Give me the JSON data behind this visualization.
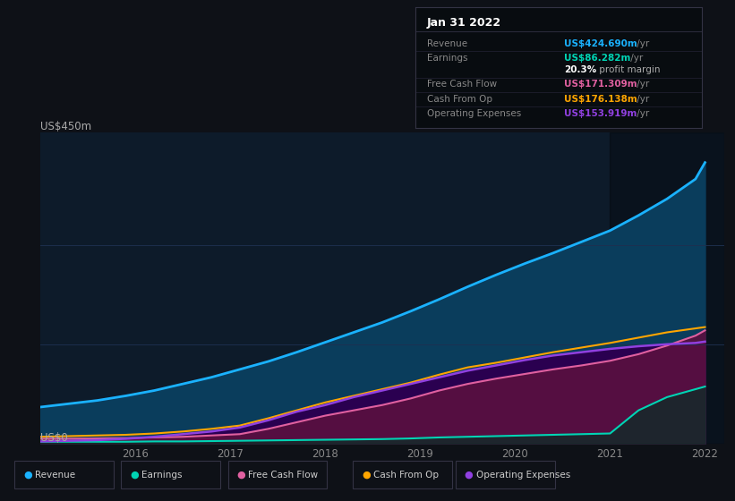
{
  "background_color": "#0e1117",
  "plot_bg_color": "#0d1b2a",
  "ylabel": "US$450m",
  "y0label": "US$0",
  "years": [
    2015.0,
    2015.3,
    2015.6,
    2015.9,
    2016.2,
    2016.5,
    2016.8,
    2017.1,
    2017.4,
    2017.7,
    2018.0,
    2018.3,
    2018.6,
    2018.9,
    2019.2,
    2019.5,
    2019.8,
    2020.1,
    2020.4,
    2020.7,
    2021.0,
    2021.3,
    2021.6,
    2021.9,
    2022.0
  ],
  "revenue": [
    55,
    60,
    65,
    72,
    80,
    90,
    100,
    112,
    124,
    138,
    153,
    168,
    183,
    200,
    218,
    237,
    255,
    272,
    288,
    305,
    322,
    345,
    370,
    400,
    425
  ],
  "earnings": [
    2.5,
    2.5,
    2.5,
    2.5,
    3,
    3,
    3.5,
    4,
    4.5,
    5,
    5.5,
    6,
    6.5,
    7.5,
    9,
    10,
    11,
    12,
    13,
    14,
    15,
    50,
    70,
    82,
    86
  ],
  "free_cash_flow": [
    7,
    7,
    7.5,
    8,
    9,
    10,
    12,
    14,
    22,
    32,
    42,
    50,
    58,
    68,
    80,
    90,
    98,
    105,
    112,
    118,
    125,
    135,
    148,
    163,
    171
  ],
  "cash_from_op": [
    10,
    11,
    12,
    13,
    15,
    18,
    22,
    27,
    38,
    50,
    62,
    72,
    82,
    92,
    104,
    115,
    122,
    130,
    138,
    145,
    152,
    160,
    168,
    174,
    176
  ],
  "operating_exp": [
    3,
    4,
    5,
    7,
    10,
    14,
    18,
    24,
    35,
    48,
    58,
    70,
    80,
    90,
    100,
    110,
    118,
    126,
    133,
    138,
    143,
    147,
    150,
    152,
    154
  ],
  "revenue_color": "#1ab2ff",
  "revenue_fill": "#0a3d5c",
  "earnings_color": "#00d4b4",
  "earnings_fill": "#1a3535",
  "free_cash_flow_color": "#e060a0",
  "free_cash_fill_top": "#8b2060",
  "cash_from_op_color": "#ffa500",
  "operating_exp_color": "#9040e0",
  "operating_exp_fill": "#2a0050",
  "tooltip_bg": "#080c10",
  "tooltip_border": "#333344",
  "tooltip_title": "Jan 31 2022",
  "tooltip_items": [
    {
      "label": "Revenue",
      "value": "US$424.690m",
      "unit": " /yr",
      "color": "#1ab2ff"
    },
    {
      "label": "Earnings",
      "value": "US$86.282m",
      "unit": " /yr",
      "color": "#00d4b4"
    },
    {
      "label": "",
      "value": "20.3%",
      "unit": " profit margin",
      "color": "#ffffff",
      "unit_color": "#aaaaaa"
    },
    {
      "label": "Free Cash Flow",
      "value": "US$171.309m",
      "unit": " /yr",
      "color": "#e060a0"
    },
    {
      "label": "Cash From Op",
      "value": "US$176.138m",
      "unit": " /yr",
      "color": "#ffa500"
    },
    {
      "label": "Operating Expenses",
      "value": "US$153.919m",
      "unit": " /yr",
      "color": "#9040e0"
    }
  ],
  "legend_items": [
    {
      "label": "Revenue",
      "color": "#1ab2ff"
    },
    {
      "label": "Earnings",
      "color": "#00d4b4"
    },
    {
      "label": "Free Cash Flow",
      "color": "#e060a0"
    },
    {
      "label": "Cash From Op",
      "color": "#ffa500"
    },
    {
      "label": "Operating Expenses",
      "color": "#9040e0"
    }
  ],
  "xlim": [
    2015.0,
    2022.2
  ],
  "ylim": [
    0,
    470
  ],
  "xticks": [
    2016,
    2017,
    2018,
    2019,
    2020,
    2021,
    2022
  ],
  "xtick_labels": [
    "2016",
    "2017",
    "2018",
    "2019",
    "2020",
    "2021",
    "2022"
  ],
  "gridline_color": "#1e3050",
  "gridline_y": [
    150,
    300
  ],
  "highlight_x_start": 2021.0
}
